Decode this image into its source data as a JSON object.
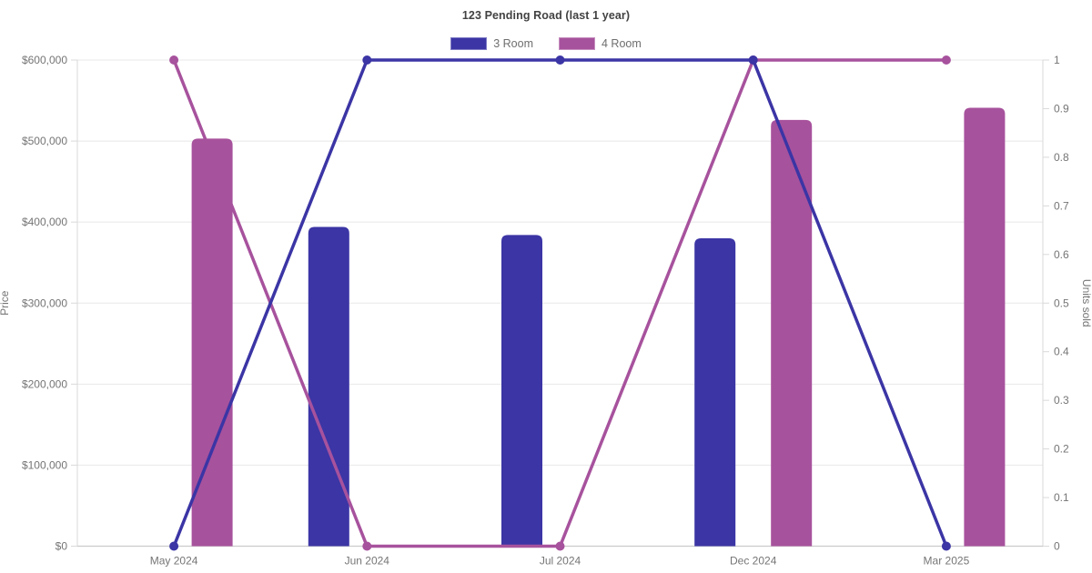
{
  "page": {
    "background": "#ffffff"
  },
  "chart": {
    "title": "123 Pending Road (last 1 year)",
    "legend": [
      {
        "label": "3 Room",
        "color": "#3b35a5"
      },
      {
        "label": "4 Room",
        "color": "#a7529d"
      }
    ]
  },
  "chart_data": {
    "type": "combo-bar-line",
    "title": "123 Pending Road (last 1 year)",
    "categories": [
      "May 2024",
      "Jun 2024",
      "Jul 2024",
      "Dec 2024",
      "Mar 2025"
    ],
    "left_axis": {
      "label": "Price",
      "min": 0,
      "max": 600000,
      "tick_step": 100000,
      "tick_labels": [
        "$0",
        "$100,000",
        "$200,000",
        "$300,000",
        "$400,000",
        "$500,000",
        "$600,000"
      ]
    },
    "right_axis": {
      "label": "Units sold",
      "min": 0,
      "max": 1,
      "tick_step": 0.1,
      "tick_labels": [
        "0",
        "0.1",
        "0.2",
        "0.3",
        "0.4",
        "0.5",
        "0.6",
        "0.7",
        "0.8",
        "0.9",
        "1"
      ]
    },
    "bar_series": [
      {
        "name": "3 Room",
        "color": "#3b35a5",
        "axis": "left",
        "values": [
          null,
          394000,
          384000,
          380000,
          null
        ]
      },
      {
        "name": "4 Room",
        "color": "#a7529d",
        "axis": "left",
        "values": [
          503000,
          null,
          null,
          526000,
          541000
        ]
      }
    ],
    "line_series": [
      {
        "name": "4 Room",
        "color": "#a7529d",
        "axis": "right",
        "values": [
          1,
          0,
          0,
          1,
          1
        ]
      },
      {
        "name": "3 Room",
        "color": "#3b35a5",
        "axis": "right",
        "values": [
          0,
          1,
          1,
          1,
          0
        ]
      }
    ],
    "grid": true,
    "legend_position": "top",
    "style": {
      "grid_color": "#e8e8e8",
      "border_color": "#d9d9d9",
      "bottom_axis_color": "#cccccc",
      "tick_text_color": "#757575"
    }
  }
}
